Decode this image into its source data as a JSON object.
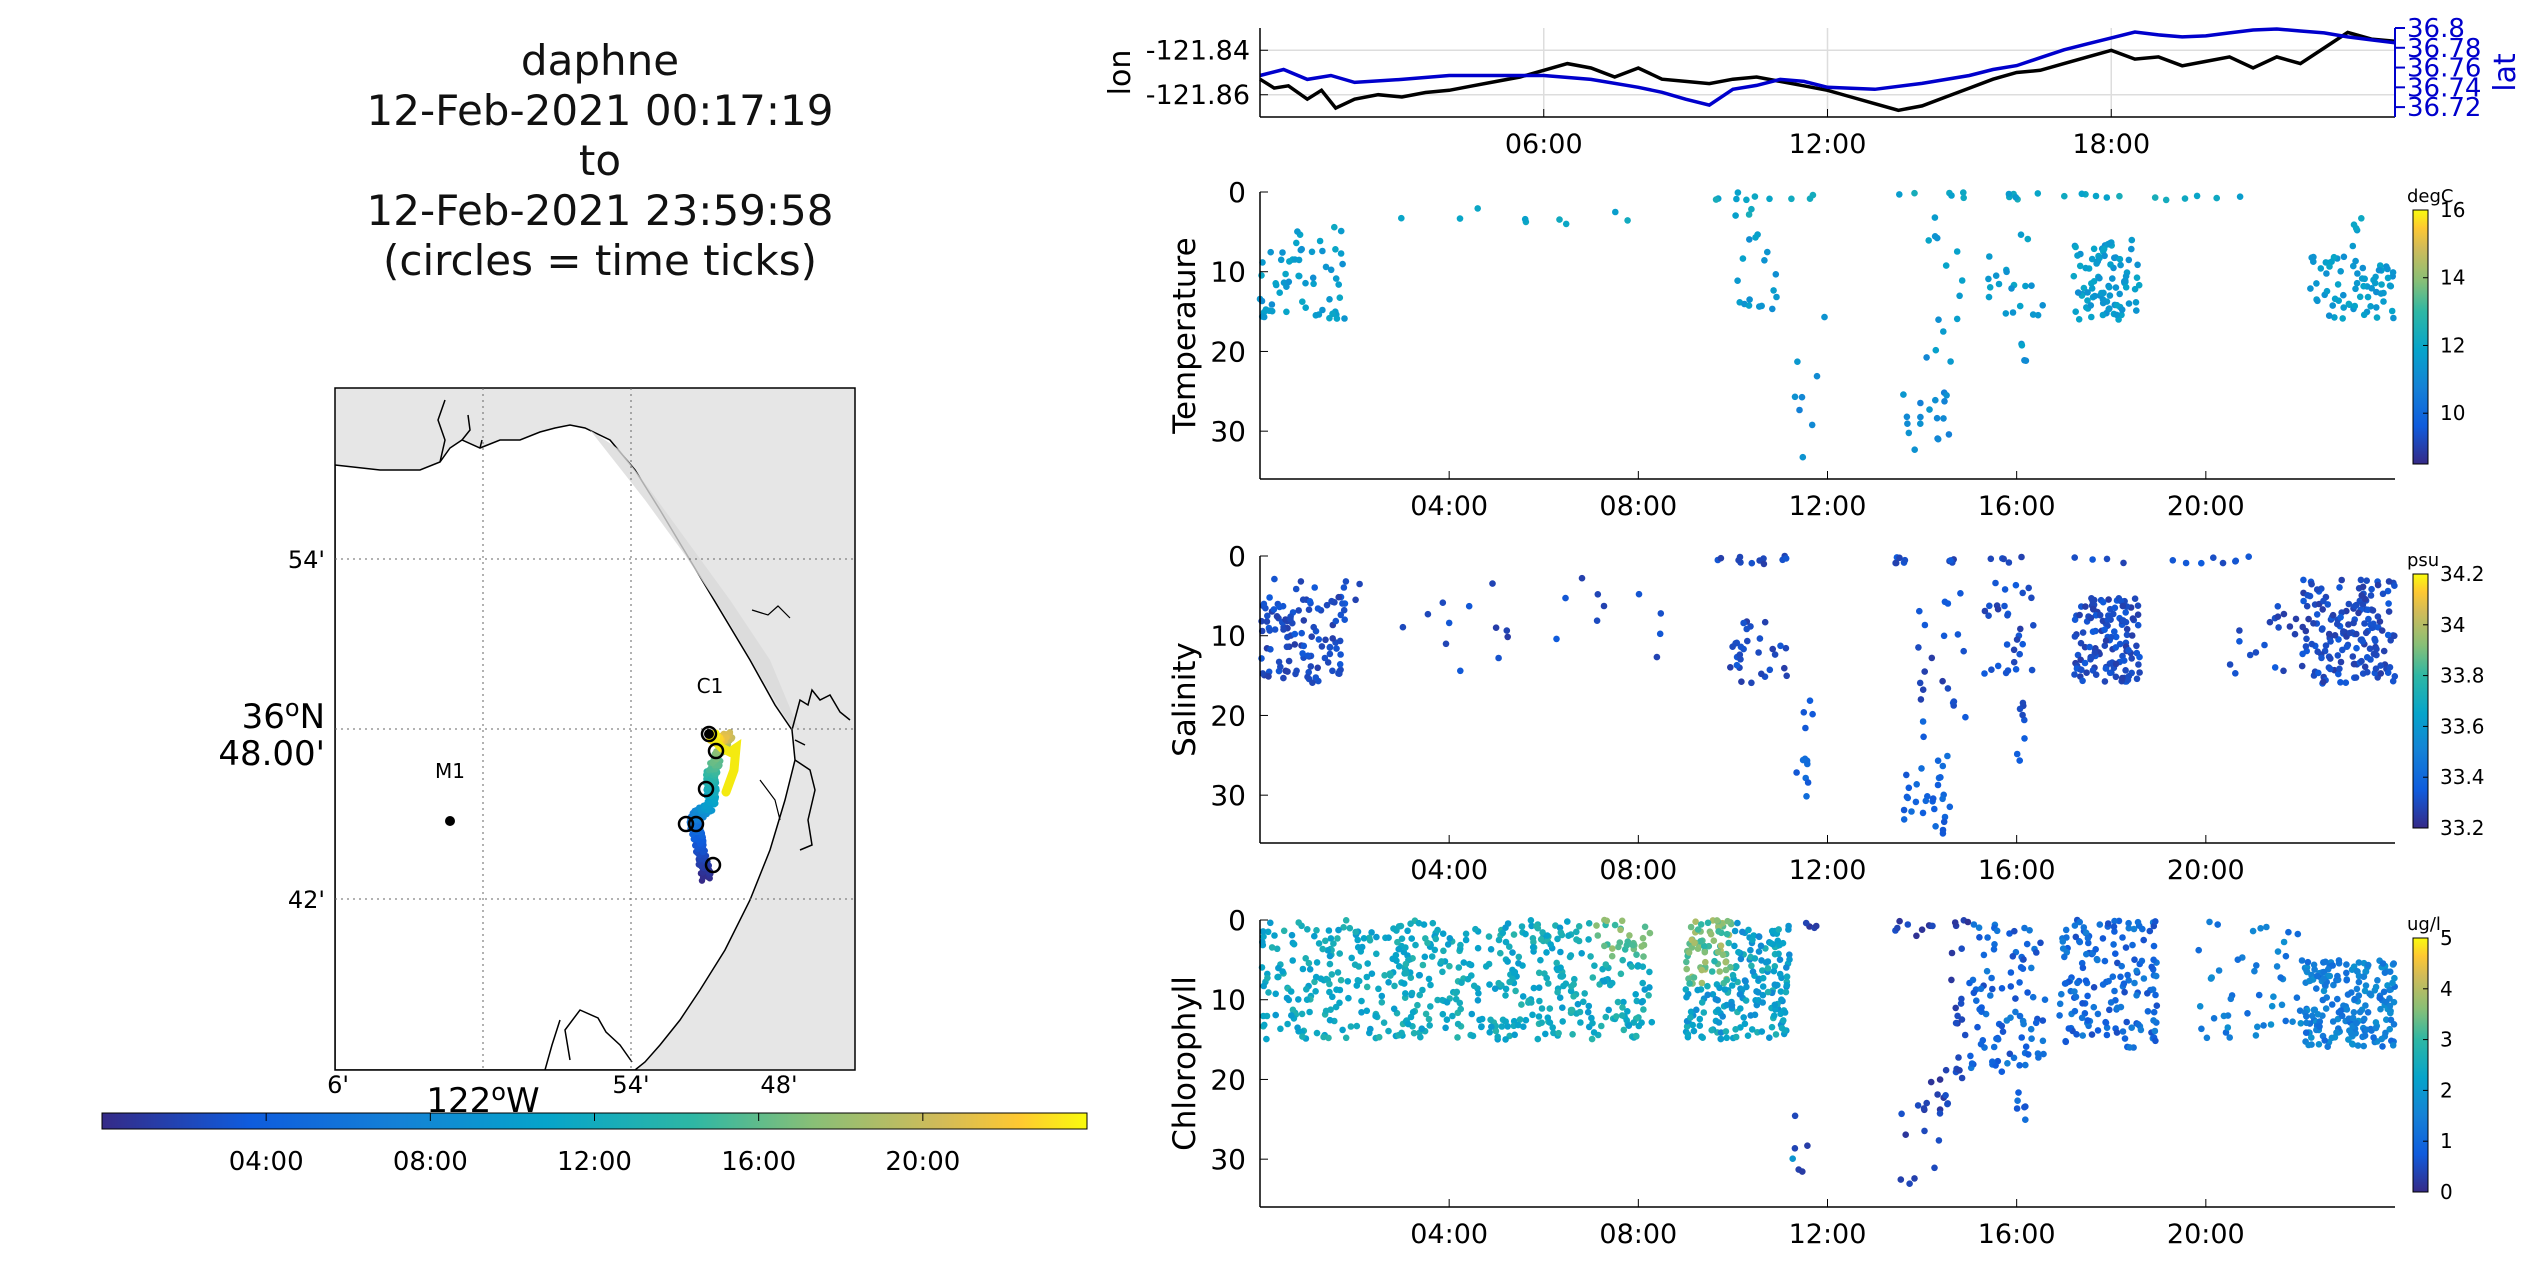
{
  "title": {
    "lines": [
      "daphne",
      "12-Feb-2021 00:17:19",
      "to",
      "12-Feb-2021 23:59:58",
      "(circles = time ticks)"
    ]
  },
  "map": {
    "lat_ticks": [
      "54'",
      "48.00'",
      "42'"
    ],
    "lat_degree_label": "36",
    "lat_hemisphere": "N",
    "lon_ticks": [
      "6'",
      "54'",
      "48'"
    ],
    "lon_degree_label": "122",
    "lon_hemisphere": "W",
    "stations": [
      {
        "name": "C1",
        "lon": -121.847,
        "lat": 36.797
      },
      {
        "name": "M1",
        "lon": -122.022,
        "lat": 36.747
      }
    ],
    "colors": {
      "land": "#e6e6e6",
      "water": "#ffffff",
      "coast": "#000000"
    }
  },
  "time_colorbar": {
    "ticks": [
      "04:00",
      "08:00",
      "12:00",
      "16:00",
      "20:00"
    ],
    "range_hours": [
      0,
      24
    ]
  },
  "chart_data": [
    {
      "type": "line",
      "panel": "lon-lat",
      "ylabel": "lon",
      "y2label": "lat",
      "x_ticks": [
        "06:00",
        "12:00",
        "18:00"
      ],
      "xlim_hours": [
        0,
        24
      ],
      "ylim": [
        -121.87,
        -121.83
      ],
      "y_ticks": [
        -121.84,
        -121.86
      ],
      "y2lim": [
        36.71,
        36.8
      ],
      "y2_ticks": [
        36.8,
        36.78,
        36.76,
        36.74,
        36.72
      ],
      "grid": true,
      "series": [
        {
          "axis": "left",
          "color": "#000000",
          "x": [
            0,
            0.3,
            0.6,
            1,
            1.3,
            1.6,
            2,
            2.5,
            3,
            3.5,
            4,
            4.5,
            5,
            5.5,
            6,
            6.5,
            7,
            7.5,
            8,
            8.5,
            9,
            9.5,
            10,
            10.5,
            11,
            11.5,
            12,
            12.5,
            13,
            13.5,
            14,
            14.5,
            15,
            15.5,
            16,
            16.5,
            17,
            17.5,
            18,
            18.5,
            19,
            19.5,
            20,
            20.5,
            21,
            21.5,
            22,
            22.5,
            23,
            23.5,
            24
          ],
          "y": [
            -121.853,
            -121.857,
            -121.856,
            -121.862,
            -121.858,
            -121.866,
            -121.862,
            -121.86,
            -121.861,
            -121.859,
            -121.858,
            -121.856,
            -121.854,
            -121.852,
            -121.849,
            -121.846,
            -121.848,
            -121.852,
            -121.848,
            -121.853,
            -121.854,
            -121.855,
            -121.853,
            -121.852,
            -121.854,
            -121.856,
            -121.858,
            -121.861,
            -121.864,
            -121.867,
            -121.865,
            -121.861,
            -121.857,
            -121.853,
            -121.85,
            -121.849,
            -121.846,
            -121.843,
            -121.84,
            -121.844,
            -121.843,
            -121.847,
            -121.845,
            -121.843,
            -121.848,
            -121.843,
            -121.846,
            -121.839,
            -121.832,
            -121.835,
            -121.836
          ]
        },
        {
          "axis": "right",
          "color": "#0000cc",
          "x": [
            0,
            0.5,
            1,
            1.5,
            2,
            3,
            4,
            5,
            6,
            7,
            8,
            8.5,
            9,
            9.5,
            10,
            10.5,
            11,
            11.5,
            12,
            13,
            14,
            15,
            15.5,
            16,
            16.5,
            17,
            17.5,
            18,
            18.5,
            19,
            19.5,
            20,
            20.5,
            21,
            21.5,
            22,
            22.5,
            23,
            23.5,
            24
          ],
          "y": [
            36.752,
            36.758,
            36.748,
            36.752,
            36.745,
            36.748,
            36.752,
            36.752,
            36.752,
            36.748,
            36.74,
            36.735,
            36.728,
            36.722,
            36.738,
            36.742,
            36.748,
            36.746,
            36.74,
            36.738,
            36.744,
            36.752,
            36.758,
            36.762,
            36.77,
            36.778,
            36.784,
            36.79,
            36.796,
            36.793,
            36.791,
            36.792,
            36.795,
            36.798,
            36.799,
            36.797,
            36.795,
            36.791,
            36.788,
            36.785
          ]
        }
      ]
    },
    {
      "type": "scatter",
      "panel": "temperature",
      "ylabel": "Temperature",
      "colorbar_label": "degC",
      "colorbar_ticks": [
        16,
        14,
        12,
        10
      ],
      "clim": [
        8.5,
        16
      ],
      "x_ticks": [
        "04:00",
        "08:00",
        "12:00",
        "16:00",
        "20:00"
      ],
      "y_ticks": [
        0,
        10,
        20,
        30
      ],
      "ylim": [
        0,
        36
      ],
      "xlim_hours": [
        0,
        24
      ]
    },
    {
      "type": "scatter",
      "panel": "salinity",
      "ylabel": "Salinity",
      "colorbar_label": "psu",
      "colorbar_ticks": [
        34.2,
        34,
        33.8,
        33.6,
        33.4,
        33.2
      ],
      "clim": [
        33.2,
        34.2
      ],
      "x_ticks": [
        "04:00",
        "08:00",
        "12:00",
        "16:00",
        "20:00"
      ],
      "y_ticks": [
        0,
        10,
        20,
        30
      ],
      "ylim": [
        0,
        36
      ],
      "xlim_hours": [
        0,
        24
      ]
    },
    {
      "type": "scatter",
      "panel": "chlorophyll",
      "ylabel": "Chlorophyll",
      "colorbar_label": "ug/l",
      "colorbar_ticks": [
        5,
        4,
        3,
        2,
        1,
        0
      ],
      "clim": [
        0,
        5
      ],
      "x_ticks": [
        "04:00",
        "08:00",
        "12:00",
        "16:00",
        "20:00"
      ],
      "y_ticks": [
        0,
        10,
        20,
        30
      ],
      "ylim": [
        0,
        36
      ],
      "xlim_hours": [
        0,
        24
      ]
    }
  ]
}
